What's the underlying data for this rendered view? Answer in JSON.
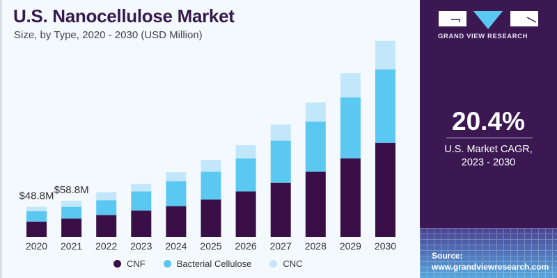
{
  "header": {
    "title": "U.S. Nanocellulose Market",
    "subtitle": "Size, by Type, 2020 - 2030 (USD Million)"
  },
  "brand": {
    "name": "GRAND VIEW RESEARCH",
    "logo_icon": "gvr-logo-icon"
  },
  "highlight": {
    "value": "20.4%",
    "label_line1": "U.S. Market CAGR,",
    "label_line2": "2023 - 2030"
  },
  "source": {
    "label": "Source:",
    "url": "www.grandviewresearch.com"
  },
  "colors": {
    "CNF": "#3a0f47",
    "Bacterial Cellulose": "#5bc8f2",
    "CNC": "#c3e7fa",
    "panel": "#3b1852",
    "title": "#361a4d"
  },
  "chart_data": {
    "type": "bar",
    "stacked": true,
    "title": "U.S. Nanocellulose Market",
    "subtitle": "Size, by Type, 2020 - 2030 (USD Million)",
    "xlabel": "",
    "ylabel": "",
    "categories": [
      "2020",
      "2021",
      "2022",
      "2023",
      "2024",
      "2025",
      "2026",
      "2027",
      "2028",
      "2029",
      "2030"
    ],
    "series": [
      {
        "name": "CNF",
        "values": [
          25.0,
          29.8,
          35.7,
          42.9,
          50.0,
          60.7,
          73.8,
          88.1,
          106.0,
          127.4,
          152.4
        ]
      },
      {
        "name": "Bacterial Cellulose",
        "values": [
          16.7,
          19.0,
          23.8,
          31.0,
          40.5,
          45.2,
          53.6,
          67.9,
          81.0,
          98.8,
          119.0
        ]
      },
      {
        "name": "CNC",
        "values": [
          7.1,
          10.0,
          13.1,
          11.9,
          14.3,
          19.0,
          21.4,
          26.2,
          31.0,
          39.3,
          46.4
        ]
      }
    ],
    "annotations": [
      {
        "category": "2020",
        "text": "$48.8M"
      },
      {
        "category": "2021",
        "text": "$58.8M"
      }
    ],
    "ylim": [
      0,
      330
    ],
    "grid": false,
    "legend": "bottom"
  }
}
